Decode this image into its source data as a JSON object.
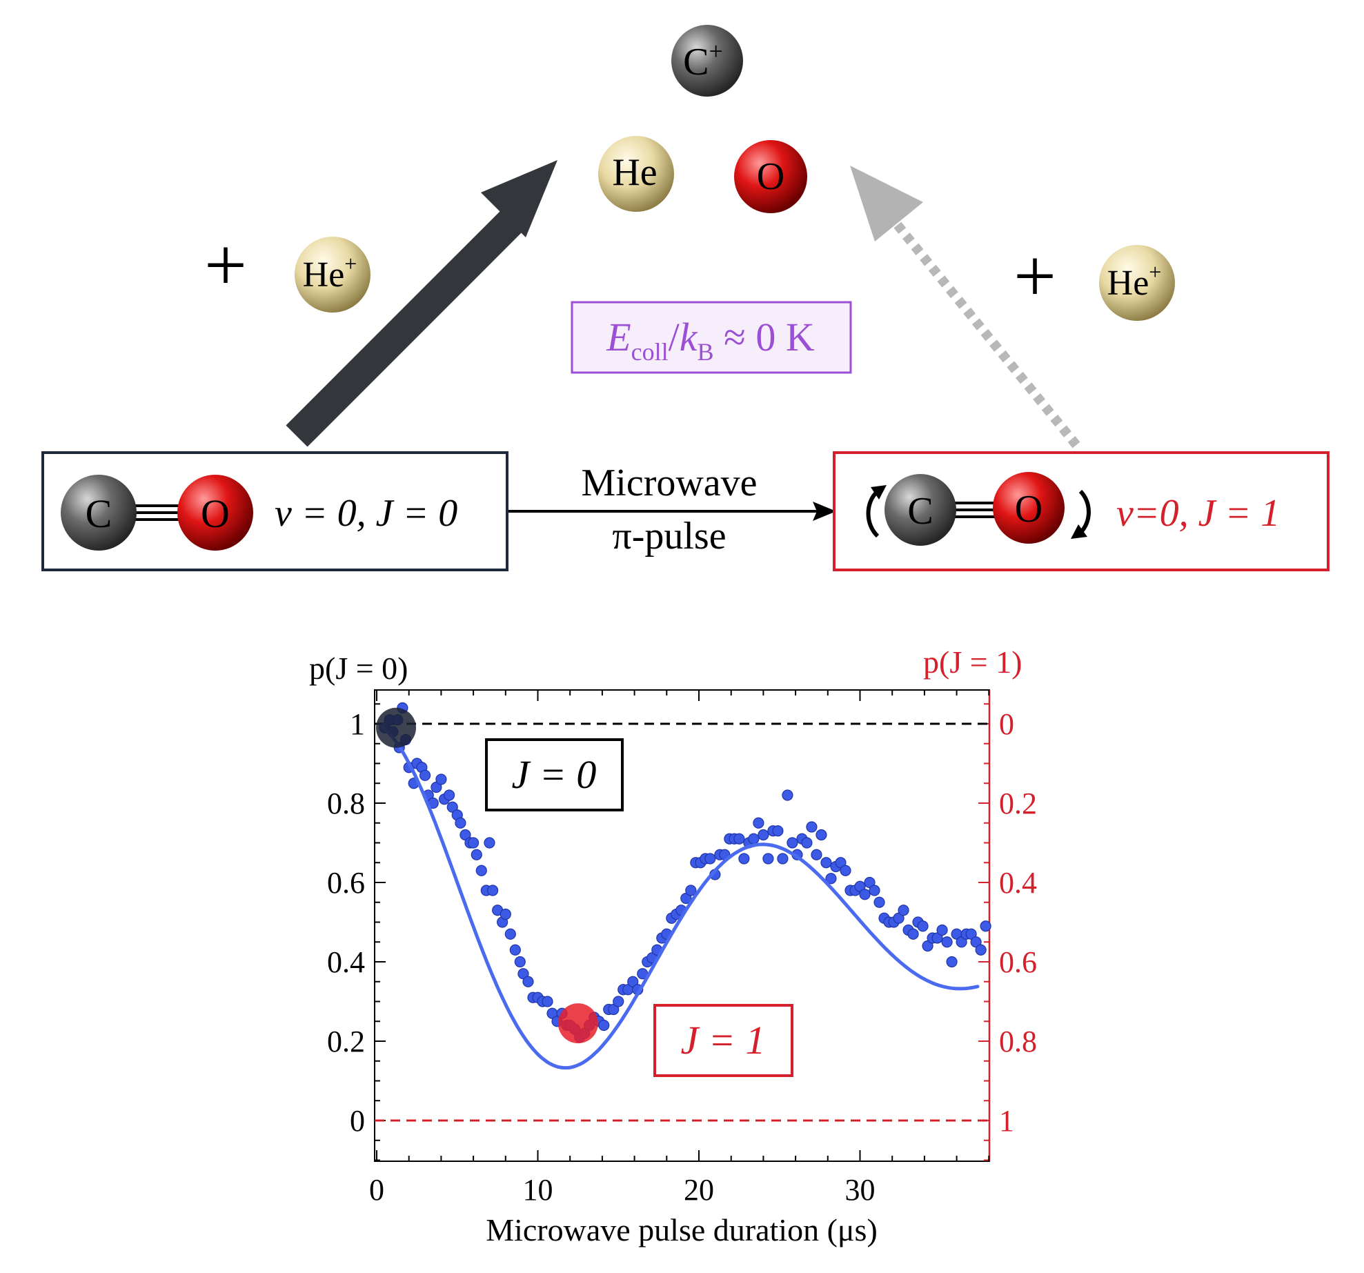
{
  "top": {
    "atoms": {
      "c_plus": {
        "label": "C",
        "sup": "+"
      },
      "he_product": {
        "label": "He"
      },
      "o_product": {
        "label": "O"
      },
      "he_plus_left": {
        "label": "He",
        "sup": "+"
      },
      "he_plus_right": {
        "label": "He",
        "sup": "+"
      }
    },
    "plus_left": "+",
    "plus_right": "+",
    "energy_box": {
      "E": "E",
      "sub_coll": "coll",
      "slash": "/",
      "k": "k",
      "sub_B": "B",
      "approx": " ≈ 0 K"
    },
    "co_left": {
      "c": "C",
      "o": "O",
      "state": "v = 0, J = 0"
    },
    "co_right": {
      "c": "C",
      "o": "O",
      "state": "v=0, J = 1"
    },
    "pulse_label_line1": "Microwave",
    "pulse_label_line2": "π-pulse"
  },
  "colors": {
    "dark_box": "#1e2a3c",
    "red": "#d4202a",
    "purple": "#9b4fd4",
    "purple_fill": "#f7eefc",
    "blue_points": "#3d5ae6",
    "dark_arrow": "#33363b",
    "gray_arrow": "#b3b3b3"
  },
  "chart_data": {
    "type": "scatter",
    "title": "",
    "xlabel": "Microwave pulse duration (μs)",
    "ylabel_left": "p(J = 0)",
    "ylabel_right": "p(J = 1)",
    "xlim": [
      0,
      38
    ],
    "ylim": [
      -0.1,
      1.1
    ],
    "xticks": [
      0,
      10,
      20,
      30
    ],
    "yticks_left": [
      0,
      0.2,
      0.4,
      0.6,
      0.8,
      1
    ],
    "yticks_left_labels": [
      "0",
      "0.2",
      "0.4",
      "0.6",
      "0.8",
      "1"
    ],
    "yticks_right_labels": [
      "1",
      "0.8",
      "0.6",
      "0.4",
      "0.2",
      "0"
    ],
    "hlines": [
      {
        "y": 1,
        "color": "#000000",
        "style": "dashed"
      },
      {
        "y": 0,
        "color": "#d4202a",
        "style": "dashed"
      }
    ],
    "state_markers": [
      {
        "x": 1.2,
        "y": 0.99,
        "color": "#1b2233",
        "label": "J = 0"
      },
      {
        "x": 12.5,
        "y": 0.245,
        "color": "#e8202a",
        "label": "J = 1"
      }
    ],
    "series": [
      {
        "type": "scatter",
        "points": [
          [
            0.5,
            0.99
          ],
          [
            0.8,
            1.01
          ],
          [
            1.0,
            0.98
          ],
          [
            1.3,
            1.01
          ],
          [
            1.6,
            1.04
          ],
          [
            1.4,
            0.94
          ],
          [
            1.8,
            0.96
          ],
          [
            2.0,
            0.89
          ],
          [
            2.3,
            0.85
          ],
          [
            2.5,
            0.9
          ],
          [
            2.8,
            0.89
          ],
          [
            3.0,
            0.87
          ],
          [
            3.2,
            0.82
          ],
          [
            3.5,
            0.8
          ],
          [
            3.7,
            0.84
          ],
          [
            4.0,
            0.86
          ],
          [
            4.2,
            0.81
          ],
          [
            4.5,
            0.82
          ],
          [
            4.7,
            0.79
          ],
          [
            5.0,
            0.77
          ],
          [
            5.2,
            0.75
          ],
          [
            5.5,
            0.72
          ],
          [
            5.8,
            0.7
          ],
          [
            6.0,
            0.7
          ],
          [
            6.2,
            0.67
          ],
          [
            6.5,
            0.63
          ],
          [
            6.8,
            0.58
          ],
          [
            7.0,
            0.7
          ],
          [
            7.2,
            0.58
          ],
          [
            7.5,
            0.53
          ],
          [
            7.8,
            0.5
          ],
          [
            8.0,
            0.52
          ],
          [
            8.3,
            0.47
          ],
          [
            8.6,
            0.43
          ],
          [
            8.9,
            0.4
          ],
          [
            9.1,
            0.37
          ],
          [
            9.4,
            0.35
          ],
          [
            9.7,
            0.31
          ],
          [
            10.0,
            0.31
          ],
          [
            10.3,
            0.3
          ],
          [
            10.6,
            0.3
          ],
          [
            10.9,
            0.27
          ],
          [
            11.2,
            0.25
          ],
          [
            11.5,
            0.27
          ],
          [
            11.8,
            0.24
          ],
          [
            12.0,
            0.24
          ],
          [
            12.3,
            0.23
          ],
          [
            12.6,
            0.21
          ],
          [
            12.9,
            0.22
          ],
          [
            13.2,
            0.24
          ],
          [
            13.5,
            0.26
          ],
          [
            13.8,
            0.25
          ],
          [
            14.1,
            0.24
          ],
          [
            14.4,
            0.28
          ],
          [
            14.7,
            0.28
          ],
          [
            15.0,
            0.3
          ],
          [
            15.3,
            0.33
          ],
          [
            15.6,
            0.33
          ],
          [
            15.9,
            0.35
          ],
          [
            16.2,
            0.33
          ],
          [
            16.5,
            0.37
          ],
          [
            16.8,
            0.4
          ],
          [
            17.1,
            0.41
          ],
          [
            17.4,
            0.43
          ],
          [
            17.7,
            0.46
          ],
          [
            18.0,
            0.47
          ],
          [
            18.3,
            0.51
          ],
          [
            18.6,
            0.52
          ],
          [
            18.9,
            0.53
          ],
          [
            19.2,
            0.56
          ],
          [
            19.5,
            0.58
          ],
          [
            19.8,
            0.65
          ],
          [
            20.1,
            0.65
          ],
          [
            20.4,
            0.66
          ],
          [
            20.7,
            0.66
          ],
          [
            21.0,
            0.62
          ],
          [
            21.3,
            0.67
          ],
          [
            21.6,
            0.67
          ],
          [
            21.9,
            0.71
          ],
          [
            22.2,
            0.71
          ],
          [
            22.5,
            0.71
          ],
          [
            22.8,
            0.66
          ],
          [
            23.1,
            0.7
          ],
          [
            23.4,
            0.71
          ],
          [
            23.7,
            0.75
          ],
          [
            24.0,
            0.72
          ],
          [
            24.3,
            0.66
          ],
          [
            24.6,
            0.73
          ],
          [
            24.9,
            0.73
          ],
          [
            25.2,
            0.66
          ],
          [
            25.5,
            0.82
          ],
          [
            25.8,
            0.7
          ],
          [
            26.1,
            0.67
          ],
          [
            26.4,
            0.71
          ],
          [
            26.7,
            0.7
          ],
          [
            27.0,
            0.74
          ],
          [
            27.3,
            0.67
          ],
          [
            27.6,
            0.72
          ],
          [
            27.9,
            0.65
          ],
          [
            28.2,
            0.61
          ],
          [
            28.5,
            0.64
          ],
          [
            28.8,
            0.65
          ],
          [
            29.1,
            0.63
          ],
          [
            29.4,
            0.58
          ],
          [
            29.7,
            0.58
          ],
          [
            30.0,
            0.59
          ],
          [
            30.3,
            0.57
          ],
          [
            30.6,
            0.6
          ],
          [
            30.9,
            0.58
          ],
          [
            31.2,
            0.55
          ],
          [
            31.5,
            0.51
          ],
          [
            31.8,
            0.5
          ],
          [
            32.1,
            0.5
          ],
          [
            32.4,
            0.51
          ],
          [
            32.7,
            0.53
          ],
          [
            33.0,
            0.48
          ],
          [
            33.3,
            0.47
          ],
          [
            33.6,
            0.5
          ],
          [
            33.9,
            0.49
          ],
          [
            34.2,
            0.44
          ],
          [
            34.5,
            0.46
          ],
          [
            34.8,
            0.46
          ],
          [
            35.1,
            0.48
          ],
          [
            35.4,
            0.45
          ],
          [
            35.7,
            0.4
          ],
          [
            36.0,
            0.47
          ],
          [
            36.3,
            0.45
          ],
          [
            36.6,
            0.47
          ],
          [
            36.9,
            0.47
          ],
          [
            37.2,
            0.45
          ],
          [
            37.5,
            0.43
          ],
          [
            37.8,
            0.49
          ]
        ]
      },
      {
        "type": "line",
        "fit": {
          "center": 0.475,
          "amplitude": 0.525,
          "tau": 28,
          "period": 24.5
        },
        "x_range": [
          0.3,
          37.3
        ]
      }
    ]
  }
}
